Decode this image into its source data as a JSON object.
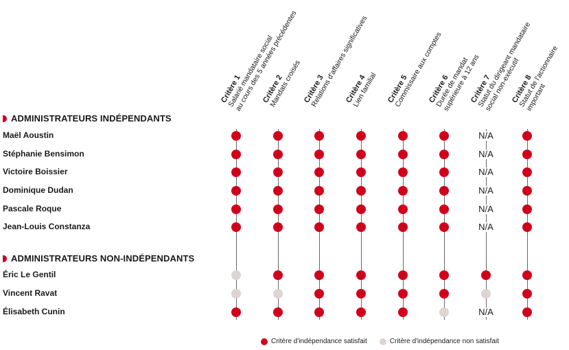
{
  "criteria": [
    {
      "title": "Critère 1",
      "desc": [
        "Salarié mandataire social",
        "au cours des 5 années précédentes"
      ]
    },
    {
      "title": "Critère 2",
      "desc": [
        "Mandats croisés"
      ]
    },
    {
      "title": "Critère 3",
      "desc": [
        "Relations d'affaires significatives"
      ]
    },
    {
      "title": "Critère 4",
      "desc": [
        "Lien familial"
      ]
    },
    {
      "title": "Critère 5",
      "desc": [
        "Commissaire aux comptes"
      ]
    },
    {
      "title": "Critère 6",
      "desc": [
        "Durée de mandat",
        "supérieure à 12 ans"
      ]
    },
    {
      "title": "Critère 7",
      "desc": [
        "Statut du dirigeant mandataire",
        "social non-exécutif"
      ]
    },
    {
      "title": "Critère 8",
      "desc": [
        "Statut de l'actionnaire",
        "important"
      ]
    }
  ],
  "sections": [
    {
      "title": "ADMINISTRATEURS INDÉPENDANTS",
      "rows": [
        {
          "name": "Maël Aoustin",
          "values": [
            "ok",
            "ok",
            "ok",
            "ok",
            "ok",
            "ok",
            "N/A",
            "ok"
          ]
        },
        {
          "name": "Stéphanie Bensimon",
          "values": [
            "ok",
            "ok",
            "ok",
            "ok",
            "ok",
            "ok",
            "N/A",
            "ok"
          ]
        },
        {
          "name": "Victoire Boissier",
          "values": [
            "ok",
            "ok",
            "ok",
            "ok",
            "ok",
            "ok",
            "N/A",
            "ok"
          ]
        },
        {
          "name": "Dominique Dudan",
          "values": [
            "ok",
            "ok",
            "ok",
            "ok",
            "ok",
            "ok",
            "N/A",
            "ok"
          ]
        },
        {
          "name": "Pascale Roque",
          "values": [
            "ok",
            "ok",
            "ok",
            "ok",
            "ok",
            "ok",
            "N/A",
            "ok"
          ]
        },
        {
          "name": "Jean-Louis Constanza",
          "values": [
            "ok",
            "ok",
            "ok",
            "ok",
            "ok",
            "ok",
            "N/A",
            "ok"
          ]
        }
      ]
    },
    {
      "title": "ADMINISTRATEURS NON-INDÉPENDANTS",
      "rows": [
        {
          "name": "Éric Le Gentil",
          "values": [
            "ko",
            "ok",
            "ok",
            "ok",
            "ok",
            "ok",
            "ok",
            "ok"
          ]
        },
        {
          "name": "Vincent Ravat",
          "values": [
            "ko",
            "ko",
            "ok",
            "ok",
            "ok",
            "ok",
            "ko",
            "ok"
          ]
        },
        {
          "name": "Élisabeth Cunin",
          "values": [
            "ok",
            "ok",
            "ok",
            "ok",
            "ok",
            "ko",
            "N/A",
            "ok"
          ]
        }
      ]
    }
  ],
  "legend": {
    "satisfied": "Critère d'indépendance satisfait",
    "not_satisfied": "Critère d'indépendance non satisfait"
  },
  "colors": {
    "satisfied": "#d0021b",
    "not_satisfied": "#dcd5d1"
  }
}
